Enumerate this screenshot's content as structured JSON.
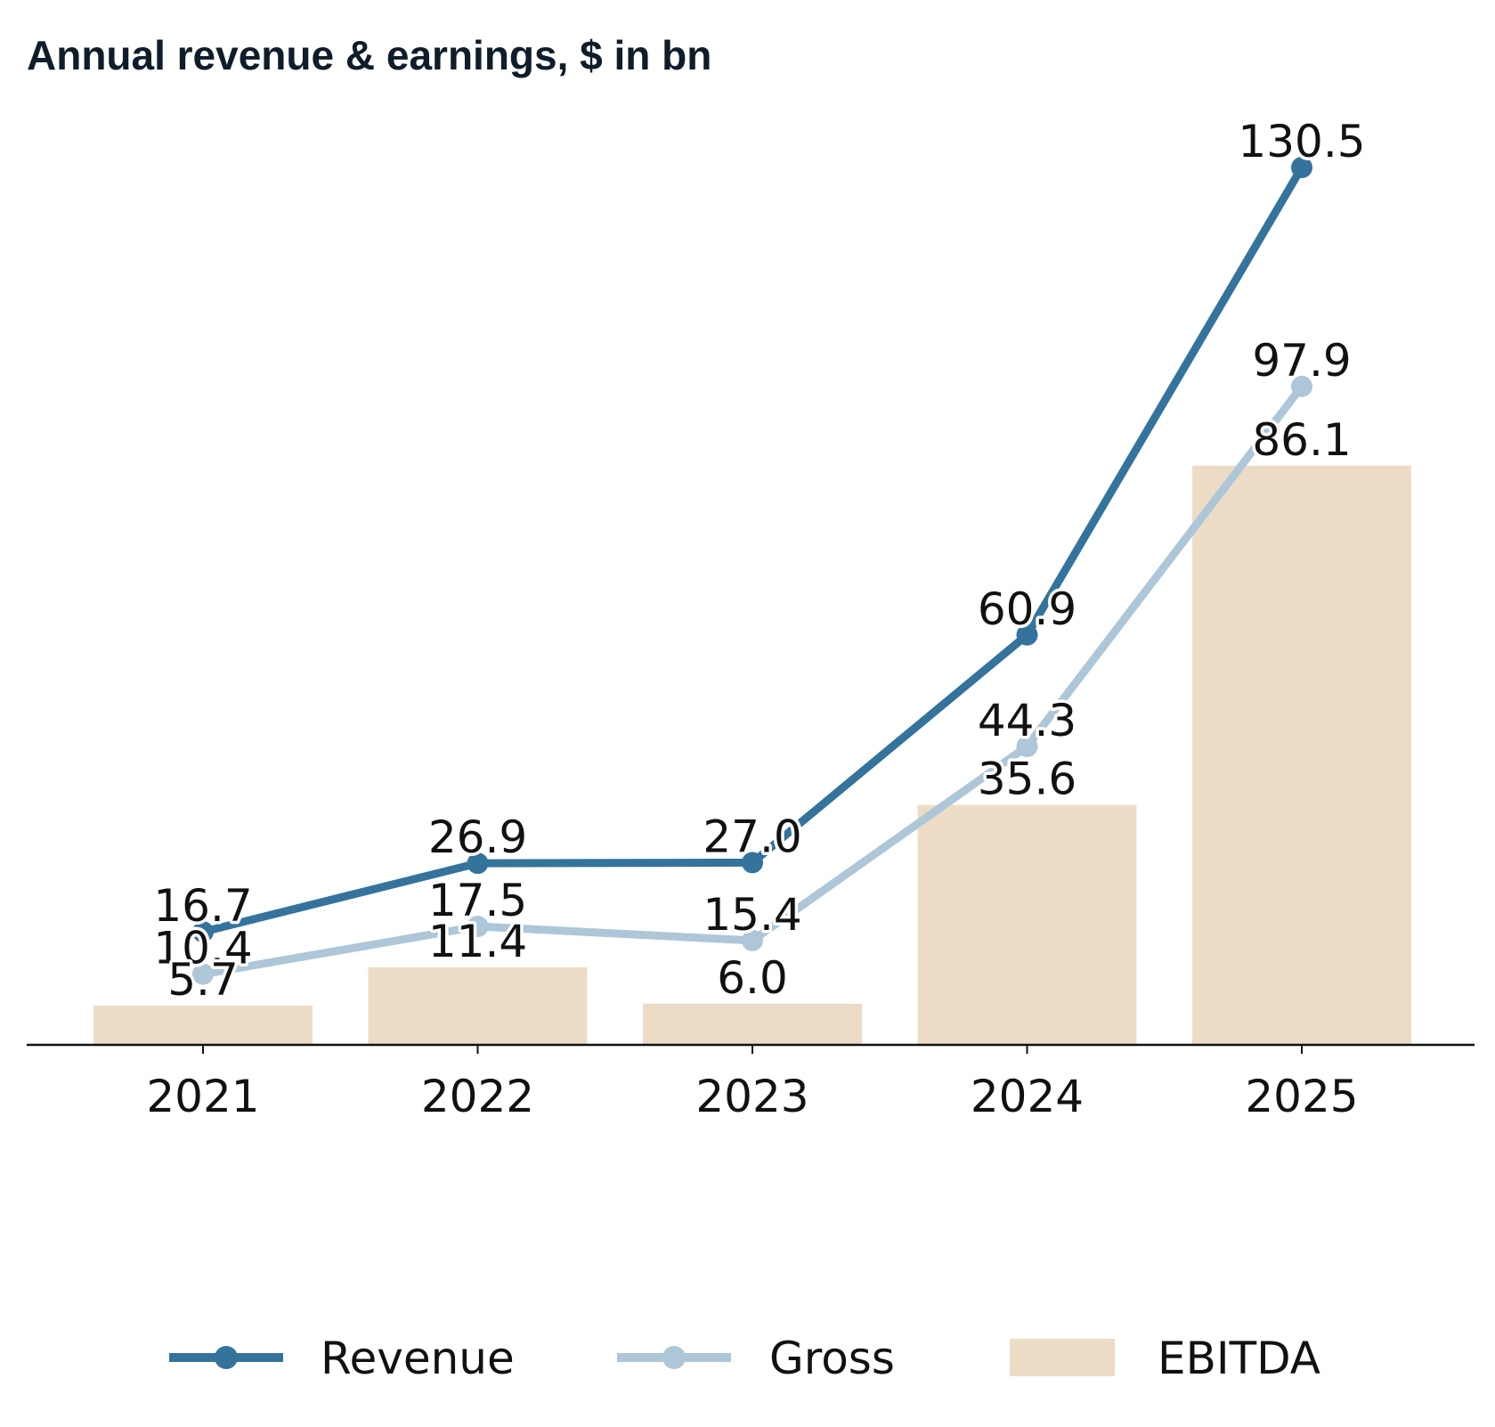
{
  "chart_data": {
    "type": "bar",
    "title": "Annual revenue & earnings, $ in bn",
    "xlabel": "",
    "ylabel": "",
    "ylim": [
      0,
      140
    ],
    "grid": false,
    "legend_position": "bottom-center",
    "categories": [
      "2021",
      "2022",
      "2023",
      "2024",
      "2025"
    ],
    "series": [
      {
        "name": "Revenue",
        "kind": "line",
        "color": "#34739c",
        "values": [
          16.7,
          26.9,
          27.0,
          60.9,
          130.5
        ],
        "labels": [
          "16.7",
          "26.9",
          "27.0",
          "60.9",
          "130.5"
        ]
      },
      {
        "name": "Gross",
        "kind": "line",
        "color": "#adc6d8",
        "values": [
          10.4,
          17.5,
          15.4,
          44.3,
          97.9
        ],
        "labels": [
          "10.4",
          "17.5",
          "15.4",
          "44.3",
          "97.9"
        ]
      },
      {
        "name": "EBITDA",
        "kind": "bar",
        "color": "#ecdcc6",
        "values": [
          5.7,
          11.4,
          6.0,
          35.6,
          86.1
        ],
        "labels": [
          "5.7",
          "11.4",
          "6.0",
          "35.6",
          "86.1"
        ]
      }
    ]
  }
}
